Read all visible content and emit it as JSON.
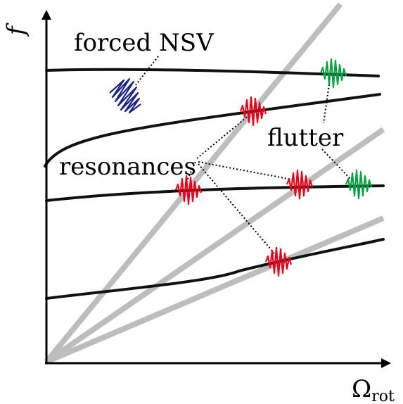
{
  "labels": {
    "forced_nsv": "forced NSV",
    "flutter": "flutter",
    "resonances": "resonances"
  },
  "axes": {
    "y_symbol": "f",
    "x_symbol": "Ω",
    "x_subscript": "rot"
  },
  "colors": {
    "mode_line": "#111111",
    "engine_order_line": "#bdbdbd",
    "resonance": "#e8001a",
    "flutter": "#0aa046",
    "forced_nsv": "#1a2580",
    "axis": "#000000"
  },
  "icons": {
    "resonance_marker": "vibration-burst-icon",
    "flutter_marker": "vibration-burst-icon",
    "nsv_marker": "vibration-scribble-icon"
  }
}
